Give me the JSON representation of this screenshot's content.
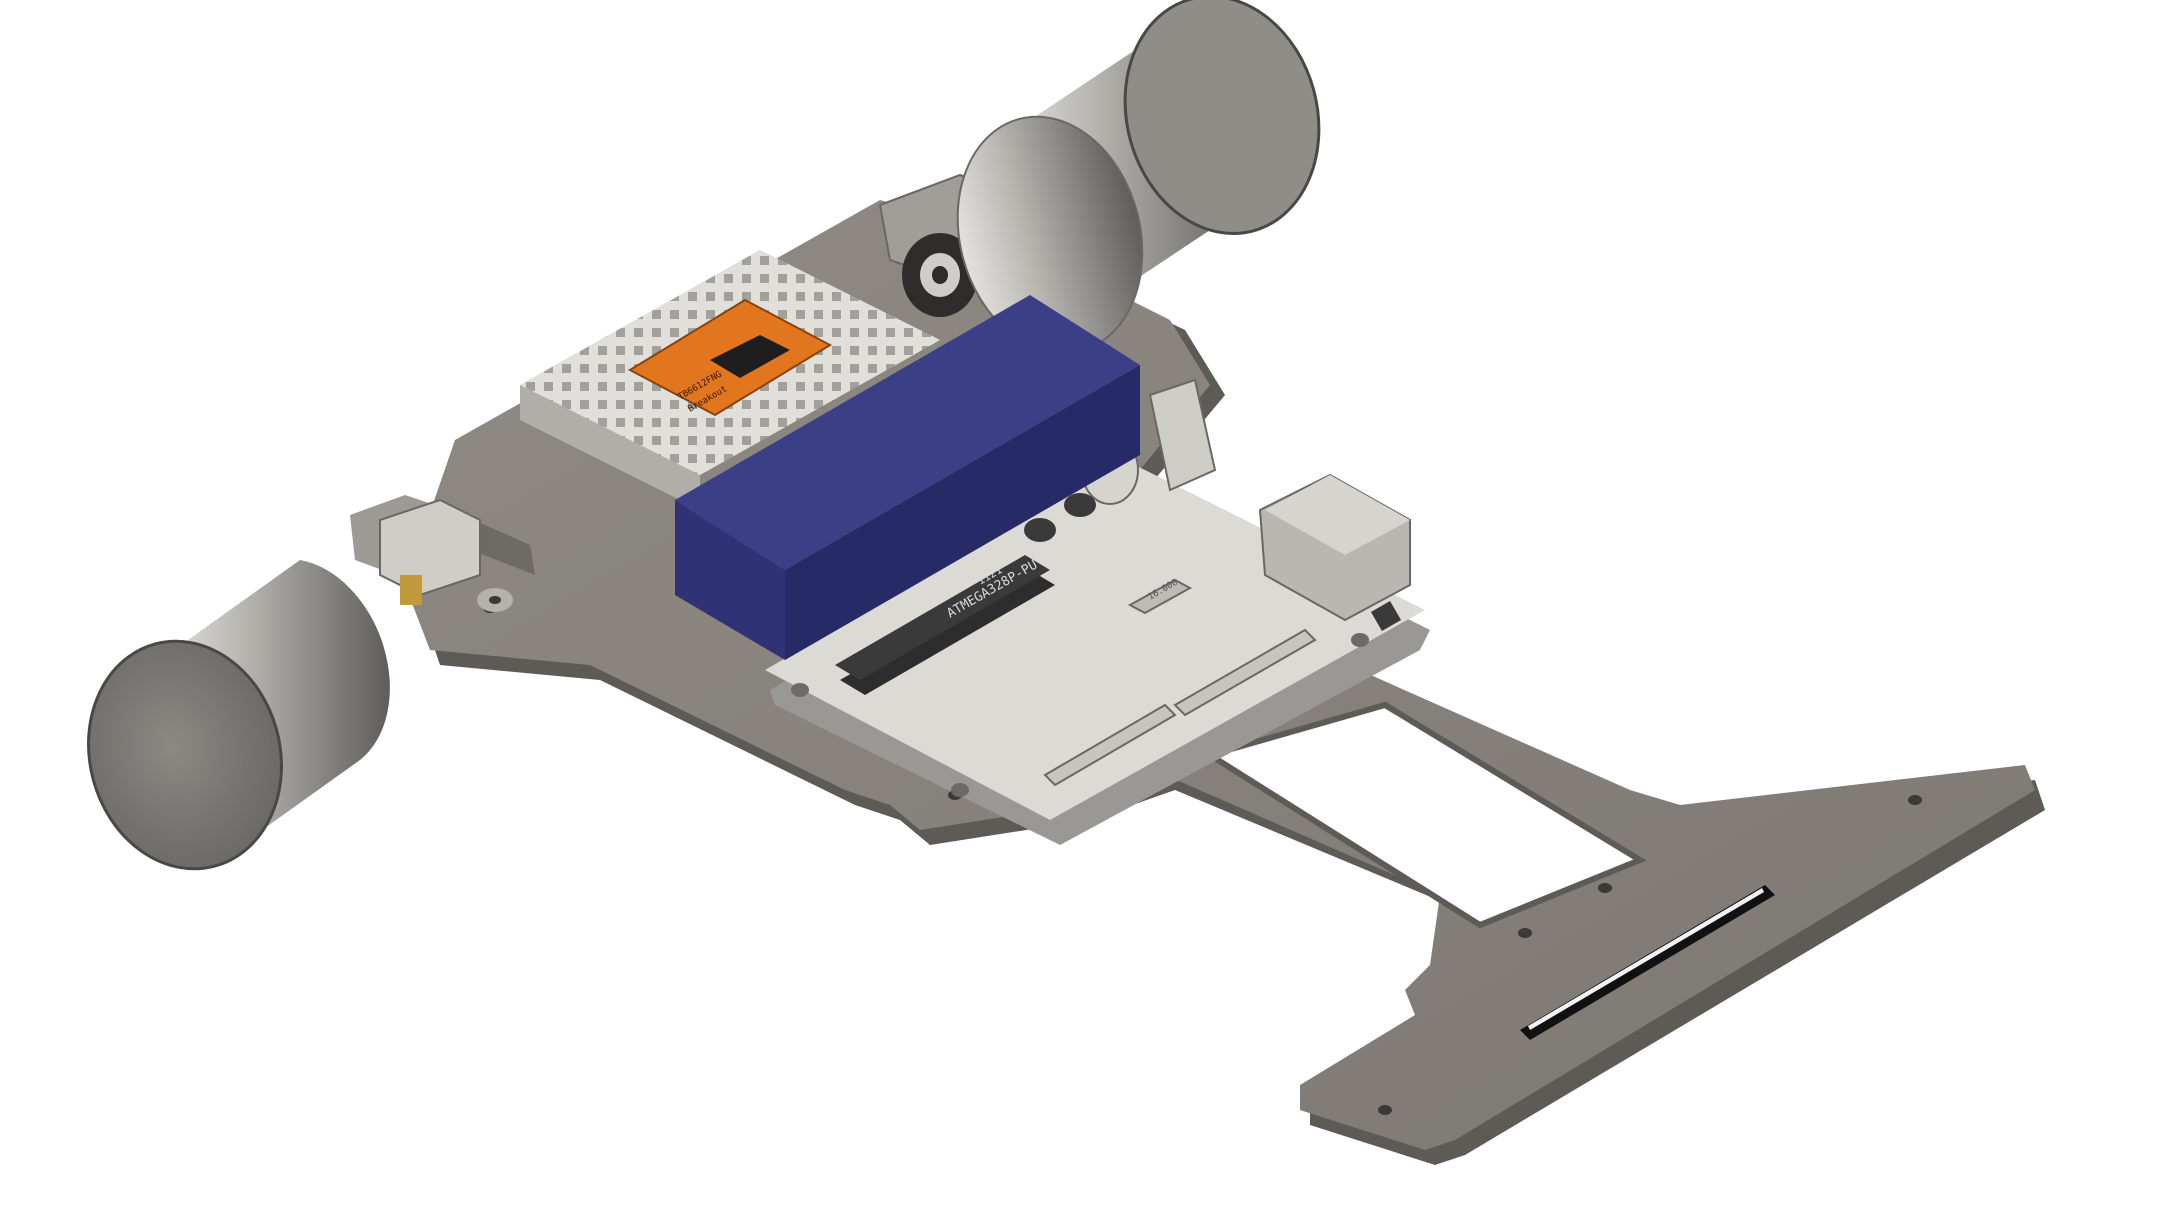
{
  "scene": {
    "description_free": true,
    "colors": {
      "background": "#ffffff",
      "chassis_top": "#8a857f",
      "chassis_edge": "#5e5a55",
      "wheel_light": "#c9c7c2",
      "wheel_dark": "#6d6b68",
      "board_top": "#dcdad5",
      "board_edge": "#9a9894",
      "header_black": "#2a2a2a",
      "battery_top": "#3a3f86",
      "battery_side": "#262a66",
      "driver_orange": "#e2761f",
      "brass": "#c29a3b"
    }
  },
  "labels": {
    "chip_name": "ATMEGA328P-PU",
    "chip_code": "1121",
    "crystal": "16.000",
    "driver_line1": "TB6612FNG",
    "driver_line2": "Breakout"
  }
}
